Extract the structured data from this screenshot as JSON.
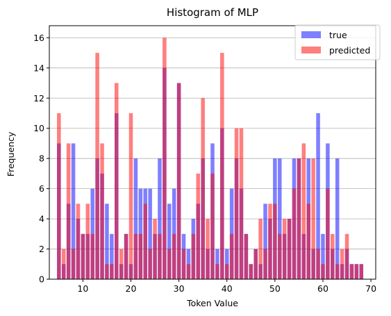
{
  "chart_data": {
    "type": "bar",
    "title": "Histogram of MLP",
    "xlabel": "Token Value",
    "ylabel": "Frequency",
    "xlim": [
      3,
      71
    ],
    "ylim": [
      0,
      16.8
    ],
    "xticks": [
      10,
      20,
      30,
      40,
      50,
      60,
      70
    ],
    "yticks": [
      0,
      2,
      4,
      6,
      8,
      10,
      12,
      14,
      16
    ],
    "grid": "y",
    "legend_position": "top-right",
    "bin_width": 0.8,
    "series": [
      {
        "name": "true",
        "color": "#0000ff",
        "opacity": 0.5,
        "x": [
          5,
          6,
          7,
          8,
          9,
          10,
          11,
          12,
          13,
          14,
          15,
          16,
          17,
          18,
          19,
          20,
          21,
          22,
          23,
          24,
          25,
          26,
          27,
          28,
          29,
          30,
          31,
          32,
          33,
          34,
          35,
          36,
          37,
          38,
          39,
          40,
          41,
          42,
          43,
          44,
          45,
          46,
          47,
          48,
          49,
          50,
          51,
          52,
          53,
          54,
          55,
          56,
          57,
          58,
          59,
          60,
          61,
          62,
          63,
          64,
          65,
          66,
          67,
          68
        ],
        "values": [
          9,
          1,
          5,
          9,
          4,
          3,
          3,
          6,
          8,
          7,
          5,
          3,
          11,
          1,
          3,
          1,
          8,
          6,
          6,
          6,
          3,
          8,
          14,
          5,
          6,
          13,
          3,
          2,
          4,
          5,
          8,
          2,
          9,
          2,
          10,
          2,
          6,
          8,
          6,
          3,
          1,
          2,
          1,
          5,
          4,
          8,
          8,
          3,
          4,
          8,
          8,
          3,
          8,
          2,
          11,
          3,
          9,
          2,
          8,
          1,
          2,
          1,
          1,
          1
        ]
      },
      {
        "name": "predicted",
        "color": "#ff0000",
        "opacity": 0.5,
        "x": [
          5,
          6,
          7,
          8,
          9,
          10,
          11,
          12,
          13,
          14,
          15,
          16,
          17,
          18,
          19,
          20,
          21,
          22,
          23,
          24,
          25,
          26,
          27,
          28,
          29,
          30,
          31,
          32,
          33,
          34,
          35,
          36,
          37,
          38,
          39,
          40,
          41,
          42,
          43,
          44,
          45,
          46,
          47,
          48,
          49,
          50,
          51,
          52,
          53,
          54,
          55,
          56,
          57,
          58,
          59,
          60,
          61,
          62,
          63,
          64,
          65,
          66,
          67,
          68
        ],
        "values": [
          11,
          2,
          9,
          2,
          5,
          3,
          5,
          3,
          15,
          9,
          1,
          1,
          13,
          2,
          3,
          11,
          3,
          3,
          5,
          2,
          4,
          3,
          16,
          2,
          3,
          13,
          2,
          1,
          3,
          7,
          12,
          4,
          7,
          1,
          15,
          1,
          3,
          10,
          10,
          3,
          1,
          2,
          4,
          2,
          5,
          5,
          3,
          4,
          4,
          6,
          8,
          9,
          5,
          8,
          2,
          1,
          6,
          3,
          1,
          2,
          3,
          1,
          1,
          1
        ]
      }
    ]
  }
}
